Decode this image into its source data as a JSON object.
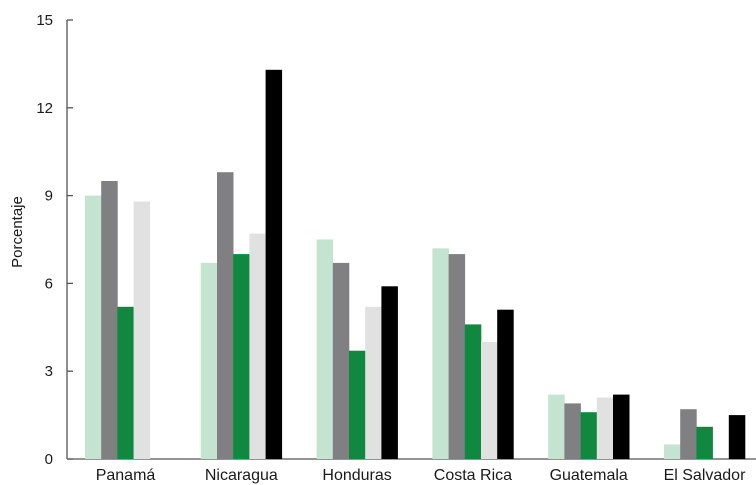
{
  "chart_data": {
    "type": "bar",
    "title": "",
    "xlabel": "",
    "ylabel": "Porcentaje",
    "ylim": [
      0,
      15
    ],
    "yticks": [
      0,
      3,
      6,
      9,
      12,
      15
    ],
    "grid": false,
    "legend": "none",
    "categories": [
      "Panamá",
      "Nicaragua",
      "Honduras",
      "Costa Rica",
      "Guatemala",
      "El Salvador"
    ],
    "series": [
      {
        "color": "#c4e3d1",
        "values": [
          9.0,
          6.7,
          7.5,
          7.2,
          2.2,
          0.5
        ]
      },
      {
        "color": "#808083",
        "values": [
          9.5,
          9.8,
          6.7,
          7.0,
          1.9,
          1.7
        ]
      },
      {
        "color": "#11883f",
        "values": [
          5.2,
          7.0,
          3.7,
          4.6,
          1.6,
          1.1
        ]
      },
      {
        "color": "#e1e1e1",
        "values": [
          8.8,
          7.7,
          5.2,
          4.0,
          2.1,
          0.0
        ]
      },
      {
        "color": "#000000",
        "values": [
          0.0,
          13.3,
          5.9,
          5.1,
          2.2,
          1.5
        ]
      }
    ]
  }
}
